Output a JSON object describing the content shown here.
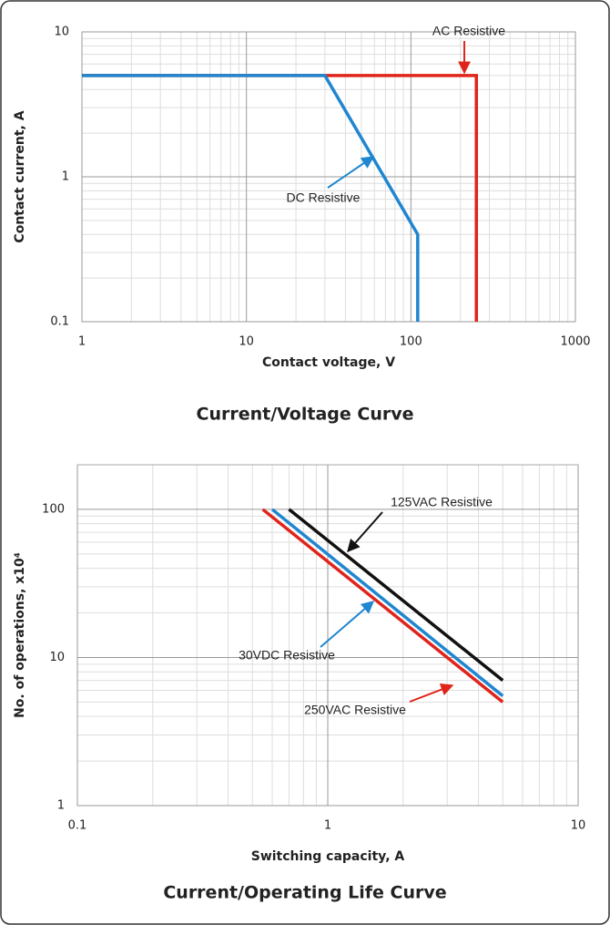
{
  "chart_data": [
    {
      "type": "line",
      "title": "Current/Voltage Curve",
      "x_label": "Contact voltage, V",
      "y_label": "Contact current, A",
      "log_x": true,
      "log_y": true,
      "grid": true,
      "minor_grid": true,
      "xlim": [
        1,
        1000
      ],
      "xticks": [
        1,
        10,
        100,
        1000
      ],
      "ylim": [
        0.1,
        10
      ],
      "yticks": [
        0.1,
        1,
        10
      ],
      "series": [
        {
          "name": "AC Resistive",
          "color": "#e0241b",
          "x": [
            1,
            250,
            250
          ],
          "values": [
            5,
            5,
            0.1
          ]
        },
        {
          "name": "DC Resistive",
          "color": "#1f86d0",
          "x": [
            1,
            30,
            110,
            110
          ],
          "values": [
            5,
            5,
            0.4,
            0.1
          ]
        }
      ]
    },
    {
      "type": "line",
      "title": "Current/Operating Life Curve",
      "x_label": "Switching capacity, A",
      "y_label": "No. of operations, x10⁴",
      "log_x": true,
      "log_y": true,
      "grid": true,
      "minor_grid": true,
      "xlim": [
        0.1,
        10
      ],
      "xticks": [
        0.1,
        1,
        10
      ],
      "ylim": [
        1,
        200
      ],
      "yticks": [
        1,
        10,
        100
      ],
      "series": [
        {
          "name": "125VAC Resistive",
          "color": "#111111",
          "x": [
            0.7,
            5
          ],
          "values": [
            100,
            7
          ]
        },
        {
          "name": "30VDC Resistive",
          "color": "#1f86d0",
          "x": [
            0.6,
            5
          ],
          "values": [
            100,
            5.5
          ]
        },
        {
          "name": "250VAC Resistive",
          "color": "#e0241b",
          "x": [
            0.55,
            5
          ],
          "values": [
            100,
            5
          ]
        }
      ]
    }
  ]
}
